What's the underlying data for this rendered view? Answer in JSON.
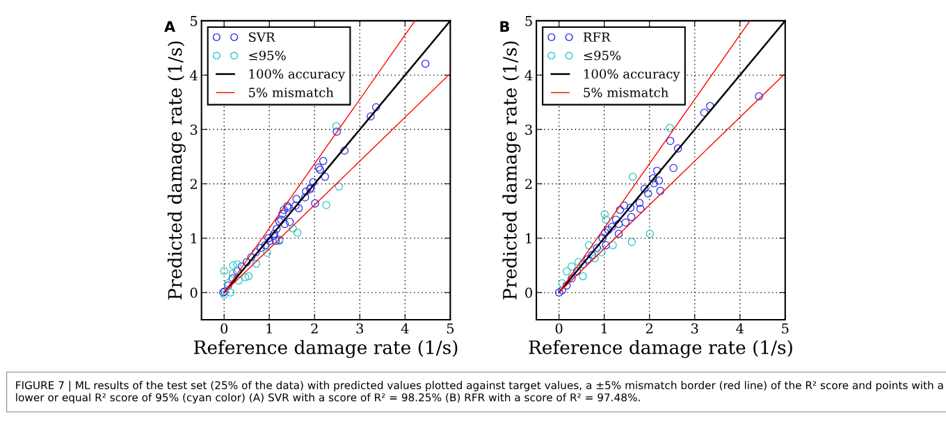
{
  "chart_data": [
    {
      "type": "scatter",
      "title": "A",
      "xlabel": "Reference damage rate (1/s)",
      "ylabel": "Predicted damage rate (1/s)",
      "xlim": [
        -0.5,
        5
      ],
      "ylim": [
        -0.5,
        5
      ],
      "xticks": [
        0,
        1,
        2,
        3,
        4,
        5
      ],
      "yticks": [
        0,
        1,
        2,
        3,
        4,
        5
      ],
      "grid": true,
      "legend": "top left",
      "series": [
        {
          "name": "SVR",
          "color": "#2c2ce6",
          "marker": "circle",
          "x": [
            4.45,
            3.36,
            3.24,
            2.49,
            2.66,
            2.19,
            2.09,
            2.12,
            2.23,
            1.97,
            1.92,
            1.9,
            1.81,
            1.79,
            2.01,
            1.6,
            1.58,
            1.65,
            1.4,
            1.41,
            1.32,
            1.29,
            1.22,
            1.26,
            1.45,
            1.34,
            1.16,
            1.11,
            1.09,
            0.98,
            1.01,
            1.14,
            1.22,
            0.91,
            0.81,
            0.7,
            0.6,
            0.5,
            0.39,
            0.29,
            0.19,
            0.09,
            0.01,
            -0.02
          ],
          "values": [
            4.21,
            3.41,
            3.24,
            2.96,
            2.61,
            2.42,
            2.3,
            2.26,
            2.13,
            2.03,
            1.93,
            1.9,
            1.86,
            1.75,
            1.64,
            1.72,
            1.6,
            1.55,
            1.59,
            1.56,
            1.52,
            1.45,
            1.31,
            1.34,
            1.3,
            1.26,
            1.17,
            1.08,
            1.04,
            1.0,
            0.95,
            0.95,
            0.97,
            0.87,
            0.82,
            0.74,
            0.65,
            0.56,
            0.48,
            0.39,
            0.26,
            0.13,
            0.02,
            0.0
          ]
        },
        {
          "name": "≤95%",
          "color": "#2ec4c4",
          "marker": "circle",
          "x": [
            2.48,
            2.54,
            2.26,
            1.62,
            1.52,
            1.22,
            0.95,
            0.71,
            0.54,
            0.47,
            0.29,
            0.2,
            0.0,
            0.14,
            0.0,
            0.32,
            0.19,
            0.09
          ],
          "values": [
            3.06,
            1.95,
            1.61,
            1.1,
            1.18,
            0.95,
            0.73,
            0.53,
            0.3,
            0.28,
            0.52,
            0.5,
            0.4,
            0.0,
            -0.04,
            0.22,
            0.35,
            0.17
          ]
        },
        {
          "name": "100% accuracy",
          "type": "line",
          "color": "#000000",
          "x": [
            0,
            5
          ],
          "values": [
            0,
            5
          ]
        },
        {
          "name": "5% mismatch",
          "type": "line",
          "color": "#ff0000",
          "x": [
            0,
            4.22
          ],
          "values": [
            0,
            5
          ]
        },
        {
          "type": "line",
          "color": "#ff0000",
          "x": [
            0,
            5
          ],
          "values": [
            0,
            4.03
          ]
        }
      ],
      "annotations": [
        "FIGURE 7 | ML results of the test set (25% of the data) with predicted values plotted against target values, a ±5% mismatch border (red line) of the R² score and points with a lower or equal R² score of 95% (cyan color) (A) SVR with a score of R² = 98.25% (B) RFR with a score of R² = 97.48%."
      ]
    },
    {
      "type": "scatter",
      "title": "B",
      "xlabel": "Reference damage rate (1/s)",
      "ylabel": "Predicted damage rate (1/s)",
      "xlim": [
        -0.5,
        5
      ],
      "ylim": [
        -0.5,
        5
      ],
      "xticks": [
        0,
        1,
        2,
        3,
        4,
        5
      ],
      "yticks": [
        0,
        1,
        2,
        3,
        4,
        5
      ],
      "grid": true,
      "legend": "top left",
      "series": [
        {
          "name": "RFR",
          "color": "#2c2ce6",
          "marker": "circle",
          "x": [
            4.42,
            3.34,
            3.21,
            2.46,
            2.63,
            2.53,
            2.17,
            2.08,
            2.21,
            2.1,
            2.24,
            1.89,
            1.97,
            1.78,
            1.8,
            1.58,
            1.44,
            1.6,
            1.35,
            1.26,
            1.47,
            1.32,
            1.17,
            1.09,
            1.02,
            1.32,
            0.96,
            1.04,
            0.84,
            0.73,
            0.63,
            0.53,
            0.4,
            0.28,
            0.17,
            0.07,
            0.0
          ],
          "values": [
            3.61,
            3.43,
            3.31,
            2.79,
            2.65,
            2.29,
            2.24,
            2.1,
            2.06,
            2.01,
            1.87,
            1.91,
            1.82,
            1.65,
            1.54,
            1.56,
            1.6,
            1.39,
            1.52,
            1.34,
            1.29,
            1.26,
            1.21,
            1.15,
            1.1,
            1.08,
            1.0,
            0.87,
            0.82,
            0.69,
            0.61,
            0.52,
            0.39,
            0.26,
            0.13,
            0.04,
            0.0
          ]
        },
        {
          "name": "≤95%",
          "color": "#2ec4c4",
          "marker": "circle",
          "x": [
            2.45,
            1.63,
            2.01,
            1.61,
            1.01,
            1.04,
            1.19,
            0.94,
            0.66,
            0.79,
            0.28,
            0.17,
            0.53,
            0.43,
            0.07
          ],
          "values": [
            3.03,
            2.13,
            1.08,
            0.93,
            1.44,
            1.34,
            0.87,
            0.74,
            0.87,
            0.63,
            0.48,
            0.39,
            0.3,
            0.56,
            0.17
          ]
        },
        {
          "name": "100% accuracy",
          "type": "line",
          "color": "#000000",
          "x": [
            0,
            5
          ],
          "values": [
            0,
            5
          ]
        },
        {
          "name": "5% mismatch",
          "type": "line",
          "color": "#ff0000",
          "x": [
            0,
            4.22
          ],
          "values": [
            0,
            5
          ]
        },
        {
          "type": "line",
          "color": "#ff0000",
          "x": [
            0,
            5
          ],
          "values": [
            0,
            4.03
          ]
        }
      ]
    }
  ]
}
